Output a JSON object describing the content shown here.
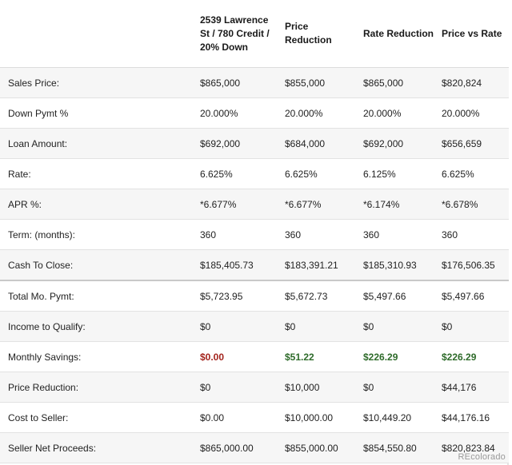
{
  "columns": [
    "",
    "2539 Lawrence St / 780 Credit / 20% Down",
    "Price Reduction",
    "Rate Reduction",
    "Price vs Rate"
  ],
  "rows": [
    {
      "label": "Sales Price:",
      "values": [
        "$865,000",
        "$855,000",
        "$865,000",
        "$820,824"
      ]
    },
    {
      "label": "Down Pymt %",
      "values": [
        "20.000%",
        "20.000%",
        "20.000%",
        "20.000%"
      ]
    },
    {
      "label": "Loan Amount:",
      "values": [
        "$692,000",
        "$684,000",
        "$692,000",
        "$656,659"
      ]
    },
    {
      "label": "Rate:",
      "values": [
        "6.625%",
        "6.625%",
        "6.125%",
        "6.625%"
      ]
    },
    {
      "label": "APR %:",
      "values": [
        "*6.677%",
        "*6.677%",
        "*6.174%",
        "*6.678%"
      ]
    },
    {
      "label": "Term: (months):",
      "values": [
        "360",
        "360",
        "360",
        "360"
      ]
    },
    {
      "label": "Cash To Close:",
      "values": [
        "$185,405.73",
        "$183,391.21",
        "$185,310.93",
        "$176,506.35"
      ]
    },
    {
      "label": "Total Mo. Pymt:",
      "values": [
        "$5,723.95",
        "$5,672.73",
        "$5,497.66",
        "$5,497.66"
      ]
    },
    {
      "label": "Income to Qualify:",
      "values": [
        "$0",
        "$0",
        "$0",
        "$0"
      ]
    },
    {
      "label": "Monthly Savings:",
      "values": [
        "$0.00",
        "$51.22",
        "$226.29",
        "$226.29"
      ]
    },
    {
      "label": "Price Reduction:",
      "values": [
        "$0",
        "$10,000",
        "$0",
        "$44,176"
      ]
    },
    {
      "label": "Cost to Seller:",
      "values": [
        "$0.00",
        "$10,000.00",
        "$10,449.20",
        "$44,176.16"
      ]
    },
    {
      "label": "Seller Net Proceeds:",
      "values": [
        "$865,000.00",
        "$855,000.00",
        "$854,550.80",
        "$820,823.84"
      ]
    }
  ],
  "colors": {
    "negative": "#a3231c",
    "positive": "#2e6b2a"
  },
  "watermark": "REcolorado"
}
